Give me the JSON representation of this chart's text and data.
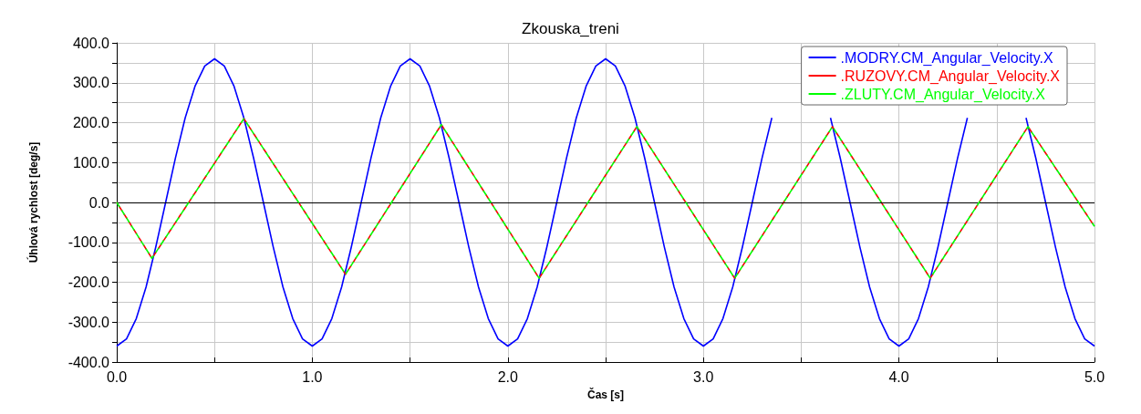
{
  "chart_data": {
    "type": "line",
    "title": "Zkouska_treni",
    "xlabel": "Čas [s]",
    "ylabel": "Úhlová rychlost [deg/s]",
    "x": [
      0,
      0.05,
      0.1,
      0.15,
      0.2,
      0.25,
      0.3,
      0.35,
      0.4,
      0.45,
      0.5,
      0.55,
      0.6,
      0.65,
      0.7,
      0.75,
      0.8,
      0.85,
      0.9,
      0.95,
      1,
      1.05,
      1.1,
      1.15,
      1.2,
      1.25,
      1.3,
      1.35,
      1.4,
      1.45,
      1.5,
      1.55,
      1.6,
      1.65,
      1.7,
      1.75,
      1.8,
      1.85,
      1.9,
      1.95,
      2,
      2.05,
      2.1,
      2.15,
      2.2,
      2.25,
      2.3,
      2.35,
      2.4,
      2.45,
      2.5,
      2.55,
      2.6,
      2.65,
      2.7,
      2.75,
      2.8,
      2.85,
      2.9,
      2.95,
      3,
      3.05,
      3.1,
      3.15,
      3.2,
      3.25,
      3.3,
      3.35,
      3.4,
      3.45,
      3.5,
      3.55,
      3.6,
      3.65,
      3.7,
      3.75,
      3.8,
      3.85,
      3.9,
      3.95,
      4,
      4.05,
      4.1,
      4.15,
      4.2,
      4.25,
      4.3,
      4.35,
      4.4,
      4.45,
      4.5,
      4.55,
      4.6,
      4.65,
      4.7,
      4.75,
      4.8,
      4.85,
      4.9,
      4.95,
      5
    ],
    "series": [
      {
        "name": ".MODRY.CM_Angular_Velocity.X",
        "color": "#0000ff",
        "line_style": "solid",
        "values": [
          -360,
          -342,
          -291,
          -212,
          -111,
          0,
          111,
          212,
          291,
          342,
          360,
          342,
          291,
          212,
          111,
          0,
          -111,
          -212,
          -291,
          -342,
          -360,
          -342,
          -291,
          -212,
          -111,
          0,
          111,
          212,
          291,
          342,
          360,
          342,
          291,
          212,
          111,
          0,
          -111,
          -212,
          -291,
          -342,
          -360,
          -342,
          -291,
          -212,
          -111,
          0,
          111,
          212,
          291,
          342,
          360,
          342,
          291,
          212,
          111,
          0,
          -111,
          -212,
          -291,
          -342,
          -360,
          -342,
          -291,
          -212,
          -111,
          0,
          111,
          212,
          null,
          null,
          null,
          null,
          null,
          212,
          111,
          0,
          -111,
          -212,
          -291,
          -342,
          -360,
          -342,
          -291,
          -212,
          -111,
          0,
          111,
          212,
          null,
          null,
          null,
          null,
          null,
          212,
          111,
          0,
          -111,
          -212,
          -291,
          -342,
          -360
        ]
      },
      {
        "name": ".RUZOVY.CM_Angular_Velocity.X",
        "color": "#ff0000",
        "line_style": "dashed",
        "x": [
          0,
          0.18,
          0.65,
          1.17,
          1.66,
          2.16,
          2.66,
          3.16,
          3.66,
          4.16,
          4.66,
          5
        ],
        "values": [
          0,
          -140,
          210,
          -180,
          195,
          -190,
          190,
          -190,
          190,
          -190,
          190,
          -60
        ]
      },
      {
        "name": ".ZLUTY.CM_Angular_Velocity.X",
        "color": "#00ff00",
        "line_style": "dashed",
        "x": [
          0,
          0.18,
          0.65,
          1.17,
          1.66,
          2.16,
          2.66,
          3.16,
          3.66,
          4.16,
          4.66,
          5
        ],
        "values": [
          0,
          -140,
          210,
          -180,
          195,
          -190,
          190,
          -190,
          190,
          -190,
          190,
          -60
        ]
      }
    ],
    "xlim": [
      0,
      5
    ],
    "xticks": [
      {
        "value": 0,
        "label": "0.0"
      },
      {
        "value": 0.5,
        "label": null
      },
      {
        "value": 1,
        "label": "1.0"
      },
      {
        "value": 1.5,
        "label": null
      },
      {
        "value": 2,
        "label": "2.0"
      },
      {
        "value": 2.5,
        "label": null
      },
      {
        "value": 3,
        "label": "3.0"
      },
      {
        "value": 3.5,
        "label": null
      },
      {
        "value": 4,
        "label": "4.0"
      },
      {
        "value": 4.5,
        "label": null
      },
      {
        "value": 5,
        "label": "5.0"
      }
    ],
    "ylim": [
      -400,
      400
    ],
    "yticks": [
      {
        "value": -400,
        "label": "-400.0"
      },
      {
        "value": -350,
        "label": null
      },
      {
        "value": -300,
        "label": "-300.0"
      },
      {
        "value": -250,
        "label": null
      },
      {
        "value": -200,
        "label": "-200.0"
      },
      {
        "value": -150,
        "label": null
      },
      {
        "value": -100,
        "label": "-100.0"
      },
      {
        "value": -50,
        "label": null
      },
      {
        "value": 0,
        "label": "0.0"
      },
      {
        "value": 50,
        "label": null
      },
      {
        "value": 100,
        "label": "100.0"
      },
      {
        "value": 150,
        "label": null
      },
      {
        "value": 200,
        "label": "200.0"
      },
      {
        "value": 250,
        "label": null
      },
      {
        "value": 300,
        "label": "300.0"
      },
      {
        "value": 350,
        "label": null
      },
      {
        "value": 400,
        "label": "400.0"
      }
    ],
    "ref_lines": [
      {
        "axis": "y",
        "value": 0,
        "color": "#000000"
      }
    ],
    "grid": true,
    "legend": "top right",
    "marker": "none"
  }
}
